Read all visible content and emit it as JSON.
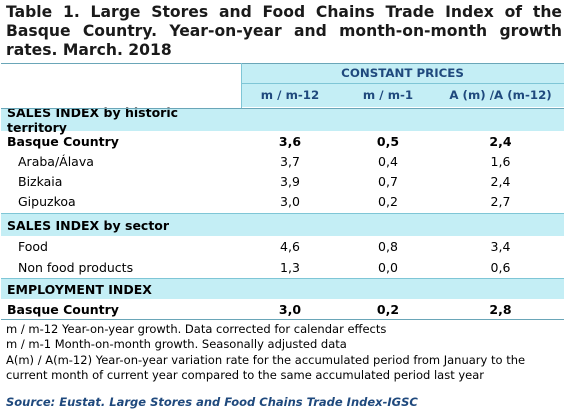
{
  "title": "Table 1. Large Stores and Food Chains Trade Index of the Basque Country. Year-on-year and month-on-month growth rates. March. 2018",
  "header": {
    "group_label": "CONSTANT PRICES",
    "col1": "m / m-12",
    "col2": "m / m-1",
    "col3": "A (m) /A (m-12)"
  },
  "sections": {
    "territory": {
      "label": "SALES INDEX by historic territory",
      "rows": [
        {
          "name": "Basque Country",
          "v1": "3,6",
          "v2": "0,5",
          "v3": "2,4"
        },
        {
          "name": "Araba/Álava",
          "v1": "3,7",
          "v2": "0,4",
          "v3": "1,6"
        },
        {
          "name": "Bizkaia",
          "v1": "3,9",
          "v2": "0,7",
          "v3": "2,4"
        },
        {
          "name": "Gipuzkoa",
          "v1": "3,0",
          "v2": "0,2",
          "v3": "2,7"
        }
      ]
    },
    "sector": {
      "label": "SALES INDEX by sector",
      "rows": [
        {
          "name": "Food",
          "v1": "4,6",
          "v2": "0,8",
          "v3": "3,4"
        },
        {
          "name": "Non food products",
          "v1": "1,3",
          "v2": "0,0",
          "v3": "0,6"
        }
      ]
    },
    "employment": {
      "label": "EMPLOYMENT INDEX",
      "rows": [
        {
          "name": "Basque Country",
          "v1": "3,0",
          "v2": "0,2",
          "v3": "2,8"
        }
      ]
    }
  },
  "notes": [
    "m / m-12 Year-on-year growth. Data corrected for calendar effects",
    "m / m-1 Month-on-month growth. Seasonally adjusted data",
    "A(m) / A(m-12) Year-on-year variation rate for the accumulated period from January to the current month of current year compared to the same accumulated period last year"
  ],
  "source": "Source: Eustat. Large Stores and Food Chains Trade Index-IGSC",
  "colors": {
    "header_fill": "#c4eef5",
    "header_text": "#1f497d",
    "rule": "#7fc6d6"
  }
}
